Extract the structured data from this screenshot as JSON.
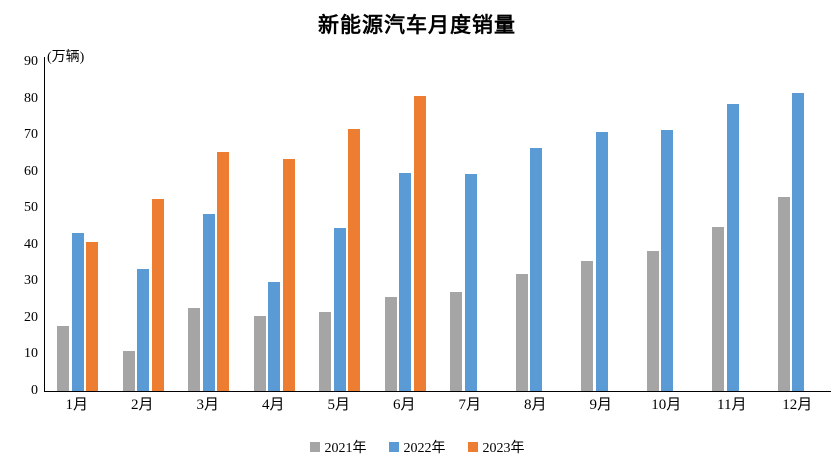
{
  "title": "新能源汽车月度销量",
  "unit_label": "(万辆)",
  "chart_data": {
    "type": "bar",
    "title": "新能源汽车月度销量",
    "ylabel": "(万辆)",
    "xlabel": "",
    "categories": [
      "1月",
      "2月",
      "3月",
      "4月",
      "5月",
      "6月",
      "7月",
      "8月",
      "9月",
      "10月",
      "11月",
      "12月"
    ],
    "series": [
      {
        "name": "2021年",
        "color": "#A5A5A5",
        "values": [
          17.9,
          11.0,
          22.6,
          20.6,
          21.7,
          25.6,
          27.1,
          32.1,
          35.7,
          38.3,
          45.0,
          53.1
        ]
      },
      {
        "name": "2022年",
        "color": "#5B9BD5",
        "values": [
          43.1,
          33.4,
          48.4,
          29.9,
          44.7,
          59.6,
          59.3,
          66.6,
          70.8,
          71.4,
          78.6,
          81.4
        ]
      },
      {
        "name": "2023年",
        "color": "#ED7D31",
        "values": [
          40.8,
          52.5,
          65.3,
          63.6,
          71.7,
          80.6,
          null,
          null,
          null,
          null,
          null,
          null
        ]
      }
    ],
    "ylim": [
      0,
      90
    ],
    "yticks": [
      0,
      10,
      20,
      30,
      40,
      50,
      60,
      70,
      80,
      90
    ],
    "grid": false,
    "legend_position": "bottom",
    "axis_color": "#000000",
    "text_color": "#000000",
    "background_color": "#FFFFFF"
  }
}
